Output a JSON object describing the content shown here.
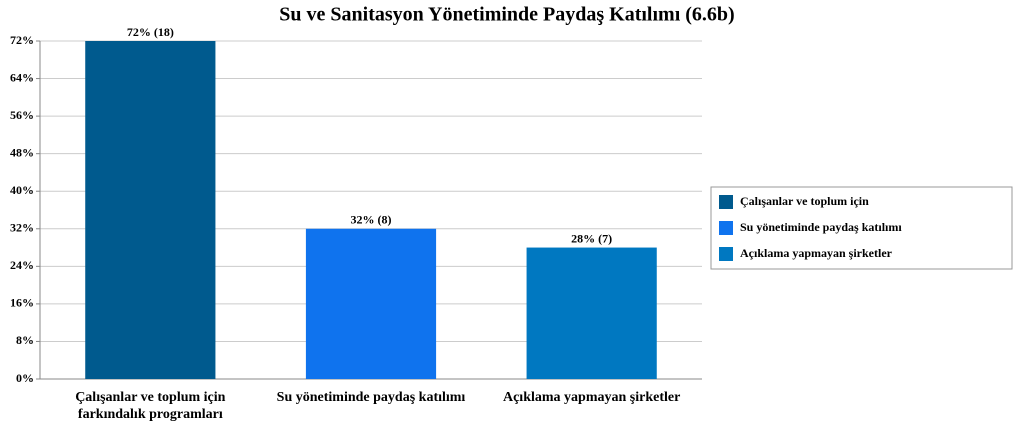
{
  "chart_data": {
    "type": "bar",
    "title": "Su ve Sanitasyon Yönetiminde Paydaş Katılımı (6.6b)",
    "categories": [
      "Çalışanlar ve toplum için farkındalık programları",
      "Su yönetiminde paydaş katılımı",
      "Açıklama yapmayan şirketler"
    ],
    "values": [
      72,
      32,
      28
    ],
    "value_labels": [
      "72% (18)",
      "32% (8)",
      "28% (7)"
    ],
    "colors": [
      "#005a8e",
      "#0f73ee",
      "#0078c1"
    ],
    "legend_labels": [
      "Çalışanlar ve toplum için",
      "Su yönetiminde paydaş katılımı",
      "Açıklama yapmayan şirketler"
    ],
    "legend": "right",
    "ylim": [
      0,
      72
    ],
    "yticks": [
      {
        "value": 0,
        "label": "0%"
      },
      {
        "value": 8,
        "label": "8%"
      },
      {
        "value": 16,
        "label": "16%"
      },
      {
        "value": 24,
        "label": "24%"
      },
      {
        "value": 32,
        "label": "32%"
      },
      {
        "value": 40,
        "label": "40%"
      },
      {
        "value": 48,
        "label": "48%"
      },
      {
        "value": 56,
        "label": "56%"
      },
      {
        "value": 64,
        "label": "64%"
      },
      {
        "value": 72,
        "label": "72%"
      }
    ],
    "grid": true
  }
}
